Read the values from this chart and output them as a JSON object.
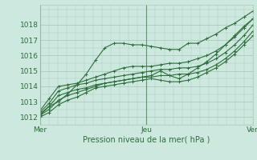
{
  "title": "",
  "xlabel": "Pression niveau de la mer( hPa )",
  "ylabel": "",
  "bg_color": "#cce8df",
  "grid_color": "#aaccbb",
  "line_color": "#2d6e3a",
  "xlim": [
    0,
    48
  ],
  "ylim": [
    1011.5,
    1019.3
  ],
  "yticks": [
    1012,
    1013,
    1014,
    1015,
    1016,
    1017,
    1018
  ],
  "xtick_positions": [
    0,
    24,
    48
  ],
  "xtick_labels": [
    "Mer",
    "Jeu",
    "Ven"
  ],
  "series": [
    [
      1012.2,
      1012.7,
      1013.0,
      1013.5,
      1014.1,
      1014.8,
      1015.7,
      1016.5,
      1016.8,
      1016.8,
      1016.7,
      1016.7,
      1016.6,
      1016.5,
      1016.4,
      1016.4,
      1016.8,
      1016.8,
      1017.1,
      1017.4,
      1017.8,
      1018.1,
      1018.5,
      1018.9
    ],
    [
      1012.4,
      1013.2,
      1014.0,
      1014.1,
      1014.2,
      1014.4,
      1014.6,
      1014.8,
      1015.0,
      1015.2,
      1015.3,
      1015.3,
      1015.3,
      1015.4,
      1015.5,
      1015.5,
      1015.6,
      1015.8,
      1016.0,
      1016.3,
      1016.7,
      1017.2,
      1017.8,
      1018.4
    ],
    [
      1012.3,
      1012.9,
      1013.7,
      1013.9,
      1014.1,
      1014.2,
      1014.4,
      1014.5,
      1014.6,
      1014.7,
      1014.8,
      1014.9,
      1015.0,
      1015.1,
      1015.1,
      1015.2,
      1015.2,
      1015.3,
      1015.5,
      1015.8,
      1016.2,
      1016.7,
      1017.3,
      1018.0
    ],
    [
      1012.1,
      1012.7,
      1013.4,
      1013.6,
      1013.8,
      1013.9,
      1014.1,
      1014.2,
      1014.3,
      1014.4,
      1014.5,
      1014.6,
      1014.6,
      1014.7,
      1014.7,
      1014.8,
      1014.8,
      1014.9,
      1015.1,
      1015.4,
      1015.8,
      1016.3,
      1016.9,
      1017.6
    ],
    [
      1012.1,
      1012.5,
      1013.1,
      1013.4,
      1013.6,
      1013.8,
      1014.0,
      1014.2,
      1014.3,
      1014.4,
      1014.5,
      1014.6,
      1014.7,
      1015.0,
      1014.7,
      1014.5,
      1014.8,
      1015.2,
      1015.6,
      1016.1,
      1016.7,
      1017.3,
      1017.9,
      1018.4
    ],
    [
      1012.0,
      1012.3,
      1012.8,
      1013.1,
      1013.3,
      1013.6,
      1013.9,
      1014.0,
      1014.1,
      1014.2,
      1014.3,
      1014.4,
      1014.5,
      1014.4,
      1014.3,
      1014.3,
      1014.4,
      1014.6,
      1014.9,
      1015.2,
      1015.6,
      1016.1,
      1016.7,
      1017.3
    ]
  ]
}
